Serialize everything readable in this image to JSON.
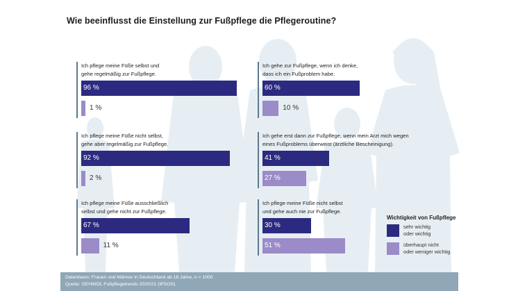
{
  "title": "Wie beeinflusst die Einstellung zur Fußpflege die Pflegeroutine?",
  "colors": {
    "high": "#2c2a80",
    "low": "#9b8bc8",
    "silhouette": "#e7eef3",
    "footer_bg": "#8fa7b7"
  },
  "chart_data": {
    "type": "bar",
    "orientation": "horizontal",
    "xlim": [
      0,
      100
    ],
    "series_names": [
      "sehr wichtig oder wichtig",
      "überhaupt nicht oder weniger wichtig"
    ],
    "groups": [
      {
        "question": [
          "Ich pflege meine Füße selbst und",
          "gehe regelmäßig zur Fußpflege."
        ],
        "values": [
          96,
          1
        ],
        "labels": [
          "96 %",
          "1 %"
        ]
      },
      {
        "question": [
          "Ich pflege meine Füße nicht selbst,",
          "gehe aber regelmäßig zur Fußpflege."
        ],
        "values": [
          92,
          2
        ],
        "labels": [
          "92 %",
          "2 %"
        ]
      },
      {
        "question": [
          "Ich pflege meine Füße ausschließlich",
          "selbst und gehe nicht zur Fußpflege."
        ],
        "values": [
          67,
          11
        ],
        "labels": [
          "67 %",
          "11 %"
        ]
      },
      {
        "question": [
          "Ich gehe zur Fußpflege, wenn ich denke,",
          "dass ich ein Fußproblem habe."
        ],
        "values": [
          60,
          10
        ],
        "labels": [
          "60 %",
          "10 %"
        ]
      },
      {
        "question": [
          "Ich gehe erst dann zur Fußpflege, wenn mein Arzt mich wegen",
          "eines Fußproblems überweist (ärztliche Bescheinigung)."
        ],
        "values": [
          41,
          27
        ],
        "labels": [
          "41 %",
          "27 %"
        ]
      },
      {
        "question": [
          "Ich pflege meine Füße nicht selbst",
          "und gehe auch nie zur Fußpflege."
        ],
        "values": [
          30,
          51
        ],
        "labels": [
          "30 %",
          "51 %"
        ]
      }
    ]
  },
  "legend": {
    "title": "Wichtigkeit von Fußpflege",
    "items": [
      {
        "label": "sehr wichtig\noder wichtig",
        "color": "#2c2a80"
      },
      {
        "label": "überhaupt nicht\noder weniger wichtig",
        "color": "#9b8bc8"
      }
    ]
  },
  "footer": {
    "line1": "Datenbasis: Frauen und Männer in Deutschland ab 16 Jahre, n = 1000",
    "line2": "Quelle: GEHWOL Fußpflegetrends 2020/21 (IPSOS)"
  }
}
